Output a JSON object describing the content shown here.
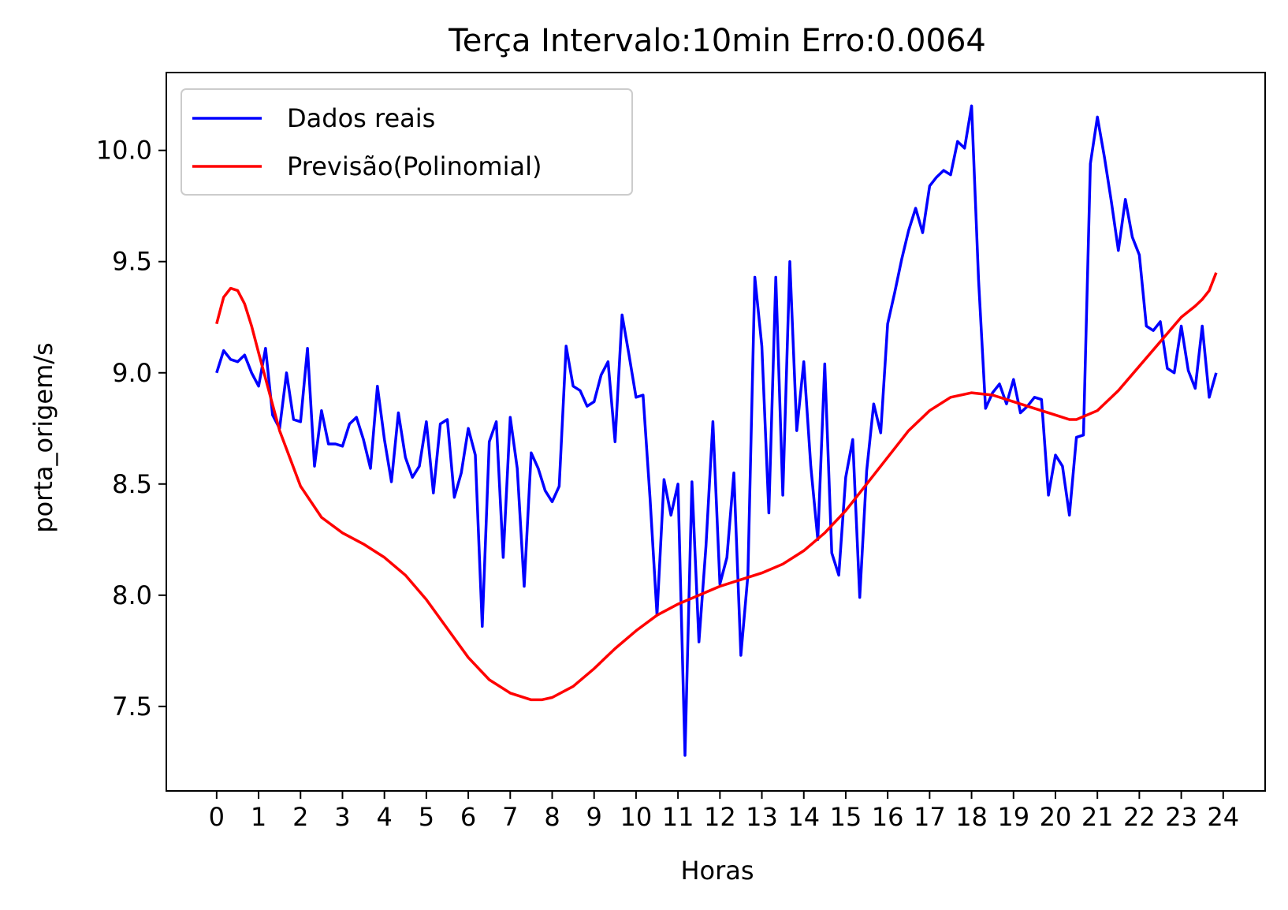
{
  "chart_data": {
    "type": "line",
    "title": "Terça Intervalo:10min Erro:0.0064",
    "xlabel": "Horas",
    "ylabel": "porta_origem/s",
    "xlim": [
      -1.2,
      25.0
    ],
    "ylim": [
      7.12,
      10.35
    ],
    "xticks": [
      0,
      1,
      2,
      3,
      4,
      5,
      6,
      7,
      8,
      9,
      10,
      11,
      12,
      13,
      14,
      15,
      16,
      17,
      18,
      19,
      20,
      21,
      22,
      23,
      24
    ],
    "xtick_labels": [
      "0",
      "1",
      "2",
      "3",
      "4",
      "5",
      "6",
      "7",
      "8",
      "9",
      "10",
      "11",
      "12",
      "13",
      "14",
      "15",
      "16",
      "17",
      "18",
      "19",
      "20",
      "21",
      "22",
      "23",
      "24"
    ],
    "yticks": [
      7.5,
      8.0,
      8.5,
      9.0,
      9.5,
      10.0
    ],
    "ytick_labels": [
      "7.5",
      "8.0",
      "8.5",
      "9.0",
      "9.5",
      "10.0"
    ],
    "legend_position": "top-left",
    "grid": false,
    "series": [
      {
        "name": "Dados reais",
        "color": "#0000ff",
        "x": [
          0.0,
          0.167,
          0.333,
          0.5,
          0.667,
          0.833,
          1.0,
          1.167,
          1.333,
          1.5,
          1.667,
          1.833,
          2.0,
          2.167,
          2.333,
          2.5,
          2.667,
          2.833,
          3.0,
          3.167,
          3.333,
          3.5,
          3.667,
          3.833,
          4.0,
          4.167,
          4.333,
          4.5,
          4.667,
          4.833,
          5.0,
          5.167,
          5.333,
          5.5,
          5.667,
          5.833,
          6.0,
          6.167,
          6.333,
          6.5,
          6.667,
          6.833,
          7.0,
          7.167,
          7.333,
          7.5,
          7.667,
          7.833,
          8.0,
          8.167,
          8.333,
          8.5,
          8.667,
          8.833,
          9.0,
          9.167,
          9.333,
          9.5,
          9.667,
          9.833,
          10.0,
          10.167,
          10.333,
          10.5,
          10.667,
          10.833,
          11.0,
          11.167,
          11.333,
          11.5,
          11.667,
          11.833,
          12.0,
          12.167,
          12.333,
          12.5,
          12.667,
          12.833,
          13.0,
          13.167,
          13.333,
          13.5,
          13.667,
          13.833,
          14.0,
          14.167,
          14.333,
          14.5,
          14.667,
          14.833,
          15.0,
          15.167,
          15.333,
          15.5,
          15.667,
          15.833,
          16.0,
          16.167,
          16.333,
          16.5,
          16.667,
          16.833,
          17.0,
          17.167,
          17.333,
          17.5,
          17.667,
          17.833,
          18.0,
          18.167,
          18.333,
          18.5,
          18.667,
          18.833,
          19.0,
          19.167,
          19.333,
          19.5,
          19.667,
          19.833,
          20.0,
          20.167,
          20.333,
          20.5,
          20.667,
          20.833,
          21.0,
          21.167,
          21.333,
          21.5,
          21.667,
          21.833,
          22.0,
          22.167,
          22.333,
          22.5,
          22.667,
          22.833,
          23.0,
          23.167,
          23.333,
          23.5,
          23.667,
          23.833
        ],
        "y": [
          9.0,
          9.1,
          9.06,
          9.05,
          9.08,
          9.0,
          8.94,
          9.11,
          8.81,
          8.75,
          9.0,
          8.79,
          8.78,
          9.11,
          8.58,
          8.83,
          8.68,
          8.68,
          8.67,
          8.77,
          8.8,
          8.7,
          8.57,
          8.94,
          8.7,
          8.51,
          8.82,
          8.62,
          8.53,
          8.58,
          8.78,
          8.46,
          8.77,
          8.79,
          8.44,
          8.55,
          8.75,
          8.63,
          7.86,
          8.69,
          8.78,
          8.17,
          8.8,
          8.57,
          8.04,
          8.64,
          8.57,
          8.47,
          8.42,
          8.49,
          9.12,
          8.94,
          8.92,
          8.85,
          8.87,
          8.99,
          9.05,
          8.69,
          9.26,
          9.08,
          8.89,
          8.9,
          8.44,
          7.91,
          8.52,
          8.36,
          8.5,
          7.28,
          8.51,
          7.79,
          8.22,
          8.78,
          8.05,
          8.17,
          8.55,
          7.73,
          8.09,
          9.43,
          9.12,
          8.37,
          9.43,
          8.45,
          9.5,
          8.74,
          9.05,
          8.58,
          8.25,
          9.04,
          8.19,
          8.09,
          8.53,
          8.7,
          7.99,
          8.56,
          8.86,
          8.73,
          9.22,
          9.36,
          9.51,
          9.64,
          9.74,
          9.63,
          9.84,
          9.88,
          9.91,
          9.89,
          10.04,
          10.01,
          10.2,
          9.42,
          8.84,
          8.91,
          8.95,
          8.86,
          8.97,
          8.82,
          8.85,
          8.89,
          8.88,
          8.45,
          8.63,
          8.58,
          8.36,
          8.71,
          8.72,
          9.94,
          10.15,
          9.97,
          9.77,
          9.55,
          9.78,
          9.61,
          9.53,
          9.21,
          9.19,
          9.23,
          9.02,
          9.0,
          9.21,
          9.01,
          8.93,
          9.21,
          8.89,
          9.0
        ]
      },
      {
        "name": "Previsão(Polinomial)",
        "color": "#ff0000",
        "x": [
          0.0,
          0.167,
          0.333,
          0.5,
          0.667,
          0.833,
          1.0,
          1.5,
          2.0,
          2.5,
          3.0,
          3.5,
          4.0,
          4.5,
          5.0,
          5.5,
          6.0,
          6.5,
          7.0,
          7.5,
          7.75,
          8.0,
          8.5,
          9.0,
          9.5,
          10.0,
          10.5,
          11.0,
          11.5,
          12.0,
          12.5,
          13.0,
          13.5,
          14.0,
          14.5,
          15.0,
          15.5,
          16.0,
          16.5,
          17.0,
          17.5,
          18.0,
          18.5,
          19.0,
          19.5,
          20.0,
          20.333,
          20.5,
          21.0,
          21.5,
          22.0,
          22.5,
          23.0,
          23.333,
          23.5,
          23.667,
          23.833
        ],
        "y": [
          9.22,
          9.34,
          9.38,
          9.37,
          9.31,
          9.21,
          9.09,
          8.74,
          8.49,
          8.35,
          8.28,
          8.23,
          8.17,
          8.09,
          7.98,
          7.85,
          7.72,
          7.62,
          7.56,
          7.53,
          7.53,
          7.54,
          7.59,
          7.67,
          7.76,
          7.84,
          7.91,
          7.96,
          8.0,
          8.04,
          8.07,
          8.1,
          8.14,
          8.2,
          8.28,
          8.38,
          8.5,
          8.62,
          8.74,
          8.83,
          8.89,
          8.91,
          8.9,
          8.87,
          8.84,
          8.81,
          8.79,
          8.79,
          8.83,
          8.92,
          9.03,
          9.14,
          9.25,
          9.3,
          9.33,
          9.37,
          9.45
        ]
      }
    ]
  }
}
